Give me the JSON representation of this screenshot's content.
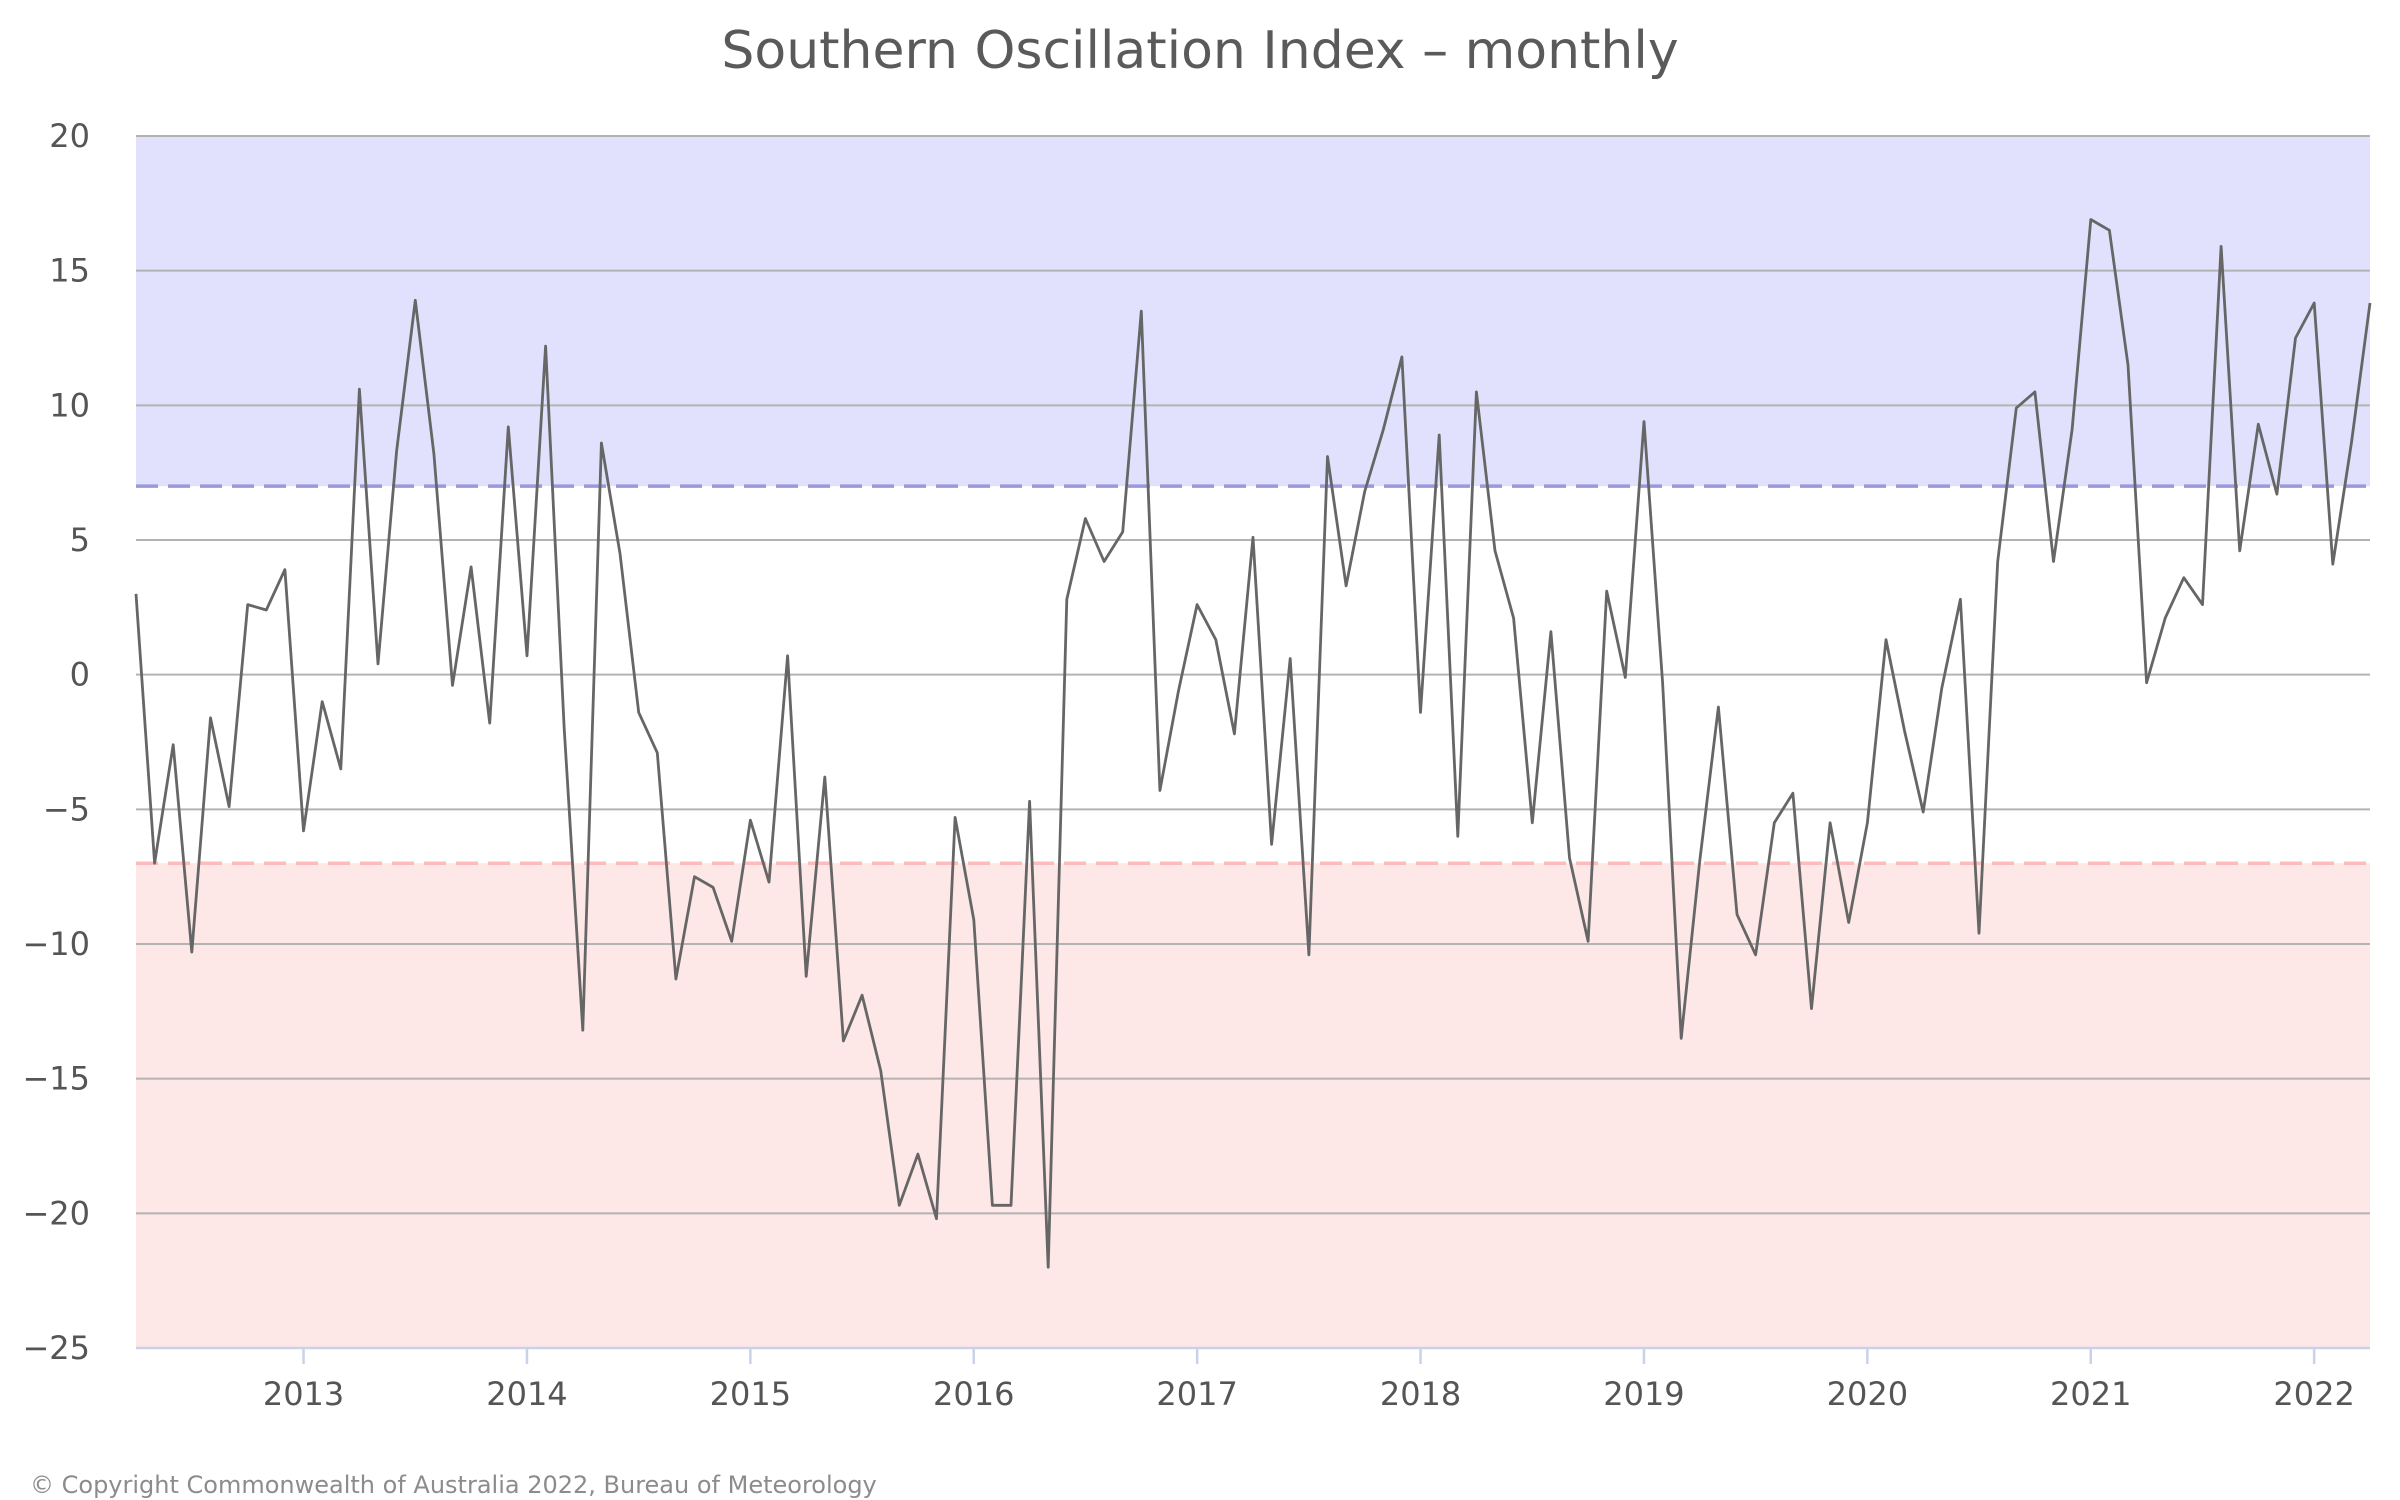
{
  "chart_data": {
    "type": "line",
    "title": "Southern Oscillation Index – monthly",
    "xlabel": "",
    "ylabel": "",
    "ylim": [
      -25,
      20
    ],
    "xlim": [
      "2012-04",
      "2022-04"
    ],
    "x_ticks": [
      "2013",
      "2014",
      "2015",
      "2016",
      "2017",
      "2018",
      "2019",
      "2020",
      "2021",
      "2022"
    ],
    "y_ticks": [
      20,
      15,
      10,
      5,
      0,
      -5,
      -10,
      -15,
      -20,
      -25
    ],
    "grid": true,
    "legend": "none",
    "thresholds": [
      {
        "value": 7,
        "color": "#9999dd",
        "style": "dashed"
      },
      {
        "value": -7,
        "color": "#ffbbbb",
        "style": "dashed"
      }
    ],
    "bands": [
      {
        "from": 7,
        "to": 20,
        "color": "#e1e1fd"
      },
      {
        "from": -25,
        "to": -7,
        "color": "#fde7e7"
      }
    ],
    "series": [
      {
        "color": "#666666",
        "x": [
          "2012-04",
          "2012-05",
          "2012-06",
          "2012-07",
          "2012-08",
          "2012-09",
          "2012-10",
          "2012-11",
          "2012-12",
          "2013-01",
          "2013-02",
          "2013-03",
          "2013-04",
          "2013-05",
          "2013-06",
          "2013-07",
          "2013-08",
          "2013-09",
          "2013-10",
          "2013-11",
          "2013-12",
          "2014-01",
          "2014-02",
          "2014-03",
          "2014-04",
          "2014-05",
          "2014-06",
          "2014-07",
          "2014-08",
          "2014-09",
          "2014-10",
          "2014-11",
          "2014-12",
          "2015-01",
          "2015-02",
          "2015-03",
          "2015-04",
          "2015-05",
          "2015-06",
          "2015-07",
          "2015-08",
          "2015-09",
          "2015-10",
          "2015-11",
          "2015-12",
          "2016-01",
          "2016-02",
          "2016-03",
          "2016-04",
          "2016-05",
          "2016-06",
          "2016-07",
          "2016-08",
          "2016-09",
          "2016-10",
          "2016-11",
          "2016-12",
          "2017-01",
          "2017-02",
          "2017-03",
          "2017-04",
          "2017-05",
          "2017-06",
          "2017-07",
          "2017-08",
          "2017-09",
          "2017-10",
          "2017-11",
          "2017-12",
          "2018-01",
          "2018-02",
          "2018-03",
          "2018-04",
          "2018-05",
          "2018-06",
          "2018-07",
          "2018-08",
          "2018-09",
          "2018-10",
          "2018-11",
          "2018-12",
          "2019-01",
          "2019-02",
          "2019-03",
          "2019-04",
          "2019-05",
          "2019-06",
          "2019-07",
          "2019-08",
          "2019-09",
          "2019-10",
          "2019-11",
          "2019-12",
          "2020-01",
          "2020-02",
          "2020-03",
          "2020-04",
          "2020-05",
          "2020-06",
          "2020-07",
          "2020-08",
          "2020-09",
          "2020-10",
          "2020-11",
          "2020-12",
          "2021-01",
          "2021-02",
          "2021-03",
          "2021-04",
          "2021-05",
          "2021-06",
          "2021-07",
          "2021-08",
          "2021-09",
          "2021-10",
          "2021-11",
          "2021-12",
          "2022-01",
          "2022-02",
          "2022-03",
          "2022-04"
        ],
        "values": [
          3.0,
          -7.0,
          -2.6,
          -10.3,
          -1.6,
          -4.9,
          2.6,
          2.4,
          3.9,
          -5.8,
          -1.0,
          -3.5,
          10.6,
          0.4,
          8.3,
          13.9,
          8.2,
          -0.4,
          4.0,
          -1.8,
          9.2,
          0.7,
          12.2,
          -2.0,
          -13.2,
          8.6,
          4.5,
          -1.4,
          -2.9,
          -11.3,
          -7.5,
          -7.9,
          -9.9,
          -5.4,
          -7.7,
          0.7,
          -11.2,
          -3.8,
          -13.6,
          -11.9,
          -14.7,
          -19.7,
          -17.8,
          -20.2,
          -5.3,
          -9.1,
          -19.7,
          -19.7,
          -4.7,
          -22.0,
          2.8,
          5.8,
          4.2,
          5.3,
          13.5,
          -4.3,
          -0.6,
          2.6,
          1.3,
          -2.2,
          5.1,
          -6.3,
          0.6,
          -10.4,
          8.1,
          3.3,
          6.8,
          9.1,
          11.8,
          -1.4,
          8.9,
          -6.0,
          10.5,
          4.6,
          2.1,
          -5.5,
          1.6,
          -6.8,
          -9.9,
          3.1,
          -0.1,
          9.4,
          -0.3,
          -13.5,
          -6.9,
          -1.2,
          -8.9,
          -10.4,
          -5.5,
          -4.4,
          -12.4,
          -5.5,
          -9.2,
          -5.5,
          1.3,
          -2.1,
          -5.1,
          -0.5,
          2.8,
          -9.6,
          4.2,
          9.9,
          10.5,
          4.2,
          9.1,
          16.9,
          16.5,
          11.5,
          -0.3,
          2.1,
          3.6,
          2.6,
          15.9,
          4.6,
          9.3,
          6.7,
          12.5,
          13.8,
          4.1,
          8.6,
          13.8
        ]
      }
    ]
  },
  "footer": {
    "copyright": "© Copyright Commonwealth of Australia 2022, Bureau of Meteorology"
  }
}
